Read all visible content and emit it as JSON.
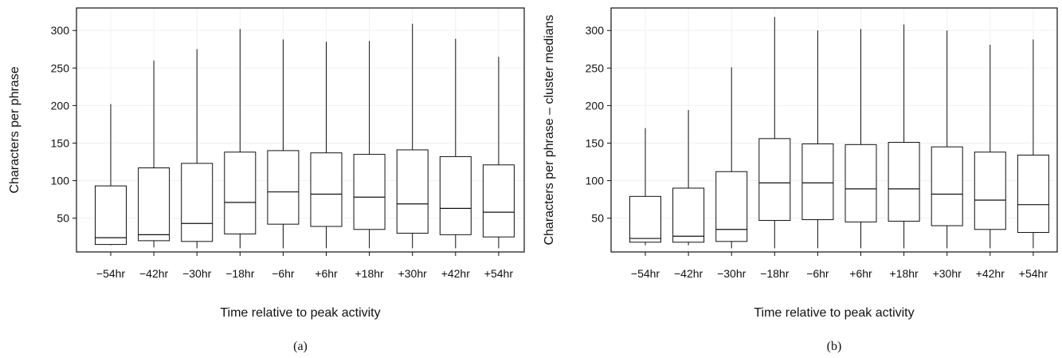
{
  "chart_data": [
    {
      "type": "box",
      "caption": "(a)",
      "xlabel": "Time relative to peak activity",
      "ylabel": "Characters per phrase",
      "ylim": [
        5,
        330
      ],
      "yticks": [
        50,
        100,
        150,
        200,
        250,
        300
      ],
      "grid": true,
      "categories": [
        "−54hr",
        "−42hr",
        "−30hr",
        "−18hr",
        "−6hr",
        "+6hr",
        "+18hr",
        "+30hr",
        "+42hr",
        "+54hr"
      ],
      "boxes": [
        {
          "whislo": 14,
          "q1": 15,
          "med": 24,
          "q3": 93,
          "whishi": 202
        },
        {
          "whislo": 11,
          "q1": 20,
          "med": 28,
          "q3": 117,
          "whishi": 260
        },
        {
          "whislo": 10,
          "q1": 19,
          "med": 43,
          "q3": 123,
          "whishi": 275
        },
        {
          "whislo": 10,
          "q1": 29,
          "med": 71,
          "q3": 138,
          "whishi": 302
        },
        {
          "whislo": 10,
          "q1": 42,
          "med": 85,
          "q3": 140,
          "whishi": 288
        },
        {
          "whislo": 10,
          "q1": 39,
          "med": 82,
          "q3": 137,
          "whishi": 285
        },
        {
          "whislo": 10,
          "q1": 35,
          "med": 78,
          "q3": 135,
          "whishi": 286
        },
        {
          "whislo": 10,
          "q1": 30,
          "med": 69,
          "q3": 141,
          "whishi": 309
        },
        {
          "whislo": 10,
          "q1": 28,
          "med": 63,
          "q3": 132,
          "whishi": 289
        },
        {
          "whislo": 10,
          "q1": 25,
          "med": 58,
          "q3": 121,
          "whishi": 265
        }
      ]
    },
    {
      "type": "box",
      "caption": "(b)",
      "xlabel": "Time relative to peak activity",
      "ylabel": "Characters per phrase – cluster medians",
      "ylim": [
        5,
        330
      ],
      "yticks": [
        50,
        100,
        150,
        200,
        250,
        300
      ],
      "grid": true,
      "categories": [
        "−54hr",
        "−42hr",
        "−30hr",
        "−18hr",
        "−6hr",
        "+6hr",
        "+18hr",
        "+30hr",
        "+42hr",
        "+54hr"
      ],
      "boxes": [
        {
          "whislo": 14,
          "q1": 18,
          "med": 23,
          "q3": 79,
          "whishi": 170
        },
        {
          "whislo": 14,
          "q1": 18,
          "med": 26,
          "q3": 90,
          "whishi": 194
        },
        {
          "whislo": 10,
          "q1": 19,
          "med": 35,
          "q3": 112,
          "whishi": 251
        },
        {
          "whislo": 10,
          "q1": 47,
          "med": 97,
          "q3": 156,
          "whishi": 318
        },
        {
          "whislo": 10,
          "q1": 48,
          "med": 97,
          "q3": 149,
          "whishi": 300
        },
        {
          "whislo": 10,
          "q1": 45,
          "med": 89,
          "q3": 148,
          "whishi": 302
        },
        {
          "whislo": 10,
          "q1": 46,
          "med": 89,
          "q3": 151,
          "whishi": 308
        },
        {
          "whislo": 10,
          "q1": 40,
          "med": 82,
          "q3": 145,
          "whishi": 300
        },
        {
          "whislo": 10,
          "q1": 35,
          "med": 74,
          "q3": 138,
          "whishi": 281
        },
        {
          "whislo": 10,
          "q1": 31,
          "med": 68,
          "q3": 134,
          "whishi": 288
        }
      ]
    }
  ]
}
